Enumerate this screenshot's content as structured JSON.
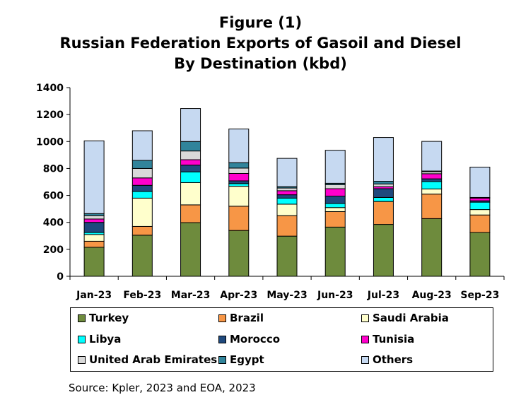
{
  "title_lines": [
    "Figure (1)",
    "Russian Federation Exports of Gasoil and Diesel",
    "By Destination (kbd)"
  ],
  "source": "Source: Kpler, 2023 and EOA, 2023",
  "chart_data": {
    "type": "bar",
    "stacked": true,
    "categories": [
      "Jan-23",
      "Feb-23",
      "Mar-23",
      "Apr-23",
      "May-23",
      "Jun-23",
      "Jul-23",
      "Aug-23",
      "Sep-23"
    ],
    "ylim": [
      0,
      1400
    ],
    "yticks": [
      0,
      200,
      400,
      600,
      800,
      1000,
      1200,
      1400
    ],
    "grid": false,
    "legend_position": "bottom",
    "series": [
      {
        "name": "Turkey",
        "color": "#6e8b3d",
        "values": [
          215,
          305,
          398,
          340,
          298,
          365,
          385,
          428,
          325
        ]
      },
      {
        "name": "Brazil",
        "color": "#f79646",
        "values": [
          45,
          65,
          132,
          180,
          152,
          115,
          170,
          182,
          130
        ]
      },
      {
        "name": "Saudi Arabia",
        "color": "#ffffcc",
        "values": [
          50,
          210,
          165,
          148,
          85,
          30,
          0,
          38,
          40
        ]
      },
      {
        "name": "Libya",
        "color": "#00ffff",
        "values": [
          15,
          50,
          80,
          20,
          45,
          30,
          30,
          55,
          55
        ]
      },
      {
        "name": "Morocco",
        "color": "#1f497d",
        "values": [
          75,
          45,
          50,
          20,
          25,
          55,
          65,
          20,
          10
        ]
      },
      {
        "name": "Tunisia",
        "color": "#ff00cc",
        "values": [
          25,
          55,
          40,
          55,
          30,
          55,
          15,
          38,
          20
        ]
      },
      {
        "name": "United Arab Emirates",
        "color": "#d9d9d9",
        "values": [
          25,
          70,
          65,
          40,
          20,
          30,
          20,
          15,
          5
        ]
      },
      {
        "name": "Egypt",
        "color": "#31849b",
        "values": [
          15,
          60,
          70,
          40,
          10,
          10,
          20,
          5,
          0
        ]
      },
      {
        "name": "Others",
        "color": "#c6d9f1",
        "values": [
          540,
          220,
          245,
          250,
          210,
          245,
          325,
          220,
          225
        ]
      }
    ]
  }
}
